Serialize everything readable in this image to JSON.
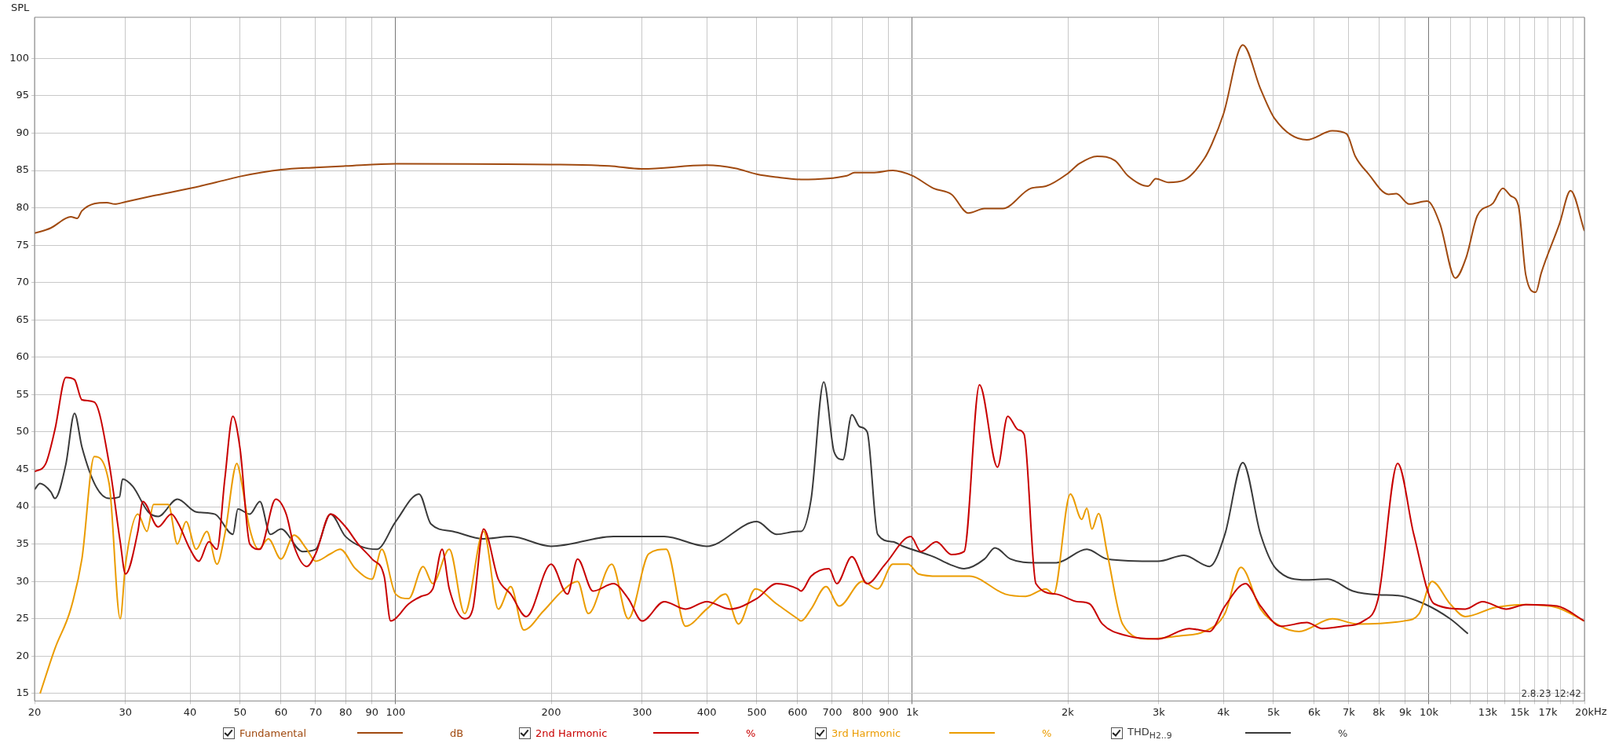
{
  "chart_data": {
    "type": "line",
    "ylabel": "SPL",
    "log": "x",
    "grid": true,
    "legend": "bottom",
    "marker": "none",
    "line_style": "solid",
    "xlim": [
      20,
      20000
    ],
    "ylim": [
      14,
      105.5
    ],
    "xticks": [
      20,
      30,
      40,
      50,
      60,
      70,
      80,
      90,
      100,
      200,
      300,
      400,
      500,
      600,
      700,
      800,
      900,
      {
        "value": 1000,
        "label": "1k"
      },
      {
        "value": 2000,
        "label": "2k"
      },
      {
        "value": 3000,
        "label": "3k"
      },
      {
        "value": 4000,
        "label": "4k"
      },
      {
        "value": 5000,
        "label": "5k"
      },
      {
        "value": 6000,
        "label": "6k"
      },
      {
        "value": 7000,
        "label": "7k"
      },
      {
        "value": 8000,
        "label": "8k"
      },
      {
        "value": 9000,
        "label": "9k"
      },
      {
        "value": 10000,
        "label": "10k"
      },
      {
        "value": 11000,
        "label": null
      },
      {
        "value": 12000,
        "label": null
      },
      {
        "value": 13000,
        "label": "13k"
      },
      {
        "value": 14000,
        "label": null
      },
      {
        "value": 15000,
        "label": "15k"
      },
      {
        "value": 16000,
        "label": null
      },
      {
        "value": 17000,
        "label": "17k"
      },
      {
        "value": 18000,
        "label": null
      },
      {
        "value": 19000,
        "label": null
      },
      {
        "value": 20000,
        "label": "20k"
      }
    ],
    "xlabel": "Hz",
    "yticks": [
      15,
      20,
      25,
      30,
      35,
      40,
      45,
      50,
      55,
      60,
      65,
      70,
      75,
      80,
      85,
      90,
      95,
      100
    ],
    "annotations": [
      "dB",
      "%",
      "%",
      "%",
      "2.8.23 12:42"
    ],
    "series": [
      {
        "name": "Fundamental",
        "color": "#a04a10",
        "x": [
          20,
          21.5,
          23,
          23.5,
          24.2,
          24.7,
          27.6,
          28.6,
          30,
          33.9,
          40,
          46.7,
          50,
          60,
          70,
          80,
          100,
          200,
          259,
          300,
          400,
          454,
          500,
          546,
          609,
          747,
          773,
          837,
          917,
          1000,
          1100,
          1191,
          1284,
          1380,
          1496,
          1695,
          1814,
          2000,
          2104,
          2280,
          2470,
          2614,
          2860,
          2960,
          3134,
          3357,
          3676,
          3804,
          4004,
          4363,
          4722,
          5033,
          5803,
          6503,
          6927,
          7202,
          7626,
          8356,
          8647,
          9156,
          9920,
          10500,
          11250,
          11800,
          12400,
          13300,
          13900,
          14400,
          14900,
          15400,
          16100,
          16500,
          17900,
          18800,
          20000
        ],
        "values": [
          76.6,
          77.3,
          78.6,
          78.8,
          78.6,
          79.6,
          80.7,
          80.5,
          80.8,
          81.6,
          82.6,
          83.7,
          84.2,
          85.1,
          85.4,
          85.6,
          85.9,
          85.8,
          85.6,
          85.2,
          85.7,
          85.3,
          84.5,
          84.1,
          83.8,
          84.3,
          84.7,
          84.7,
          85.0,
          84.3,
          82.6,
          81.8,
          79.3,
          79.9,
          79.9,
          82.6,
          82.9,
          84.6,
          85.9,
          86.9,
          86.3,
          84.3,
          82.9,
          83.9,
          83.4,
          83.7,
          86.6,
          88.6,
          92.6,
          101.8,
          95.9,
          91.9,
          89.1,
          90.3,
          89.9,
          86.9,
          84.6,
          81.8,
          81.9,
          80.5,
          80.9,
          77.9,
          70.6,
          73.3,
          78.9,
          80.6,
          82.6,
          81.6,
          80.3,
          71.0,
          68.7,
          71.3,
          77.9,
          82.3,
          76.9
        ]
      },
      {
        "name": "2nd Harmonic",
        "color": "#c80000",
        "x": [
          20,
          21,
          21.9,
          23,
          23.9,
          24.7,
          26.1,
          27.9,
          29.3,
          30,
          31.7,
          32.4,
          34.7,
          36.8,
          38,
          40,
          41.6,
          43.5,
          45.1,
          46.7,
          48.4,
          50,
          52.2,
          54.6,
          58.6,
          61.4,
          63.6,
          67.3,
          70,
          74.8,
          80,
          84.6,
          90,
          95,
          97.8,
          106,
          112,
          118,
          123,
          127,
          136,
          141,
          148,
          158,
          167,
          179,
          200,
          215,
          225,
          241,
          264,
          282,
          300,
          331,
          364,
          400,
          444,
          500,
          546,
          600,
          609,
          637,
          690,
          714,
          764,
          818,
          886,
          993,
          1039,
          1113,
          1191,
          1260,
          1349,
          1462,
          1530,
          1602,
          1646,
          1735,
          1900,
          2080,
          2204,
          2333,
          2614,
          2990,
          3435,
          3762,
          4028,
          4416,
          4722,
          5170,
          5803,
          6214,
          6810,
          7467,
          7975,
          8700,
          9347,
          10240,
          11760,
          12700,
          14100,
          15400,
          17700,
          20000
        ],
        "values": [
          44.7,
          45.7,
          50.3,
          57.3,
          57,
          54.3,
          54,
          45.7,
          35.3,
          31,
          36.7,
          40.7,
          37.3,
          39,
          37.7,
          34.3,
          32.7,
          35.3,
          34.3,
          43.7,
          52.1,
          47.7,
          35,
          34.3,
          41,
          39,
          34.7,
          32,
          33.7,
          39,
          37.3,
          35,
          33,
          30.7,
          24.7,
          27,
          28,
          29,
          34.3,
          29,
          25,
          26.3,
          37,
          30.3,
          28.3,
          25.3,
          32.3,
          28.3,
          33,
          28.7,
          29.7,
          27.7,
          24.7,
          27.3,
          26.3,
          27.3,
          26.3,
          27.7,
          29.7,
          29,
          28.7,
          30.7,
          31.7,
          29.7,
          33.3,
          29.7,
          32.3,
          36,
          34,
          35.3,
          33.6,
          34,
          56.3,
          45.3,
          52.1,
          50.3,
          49.7,
          29.7,
          28.3,
          27.3,
          27,
          24.3,
          22.7,
          22.3,
          23.7,
          23.3,
          26.7,
          29.7,
          26.7,
          24,
          24.5,
          23.7,
          24,
          24.7,
          27.7,
          45.8,
          36.3,
          27,
          26.3,
          27.3,
          26.3,
          26.9,
          26.7,
          24.7
        ]
      },
      {
        "name": "3rd Harmonic",
        "color": "#eb9c00",
        "x": [
          20.5,
          21.9,
          23.5,
          24.7,
          26.1,
          27.9,
          29.3,
          30,
          31.7,
          33,
          34,
          36.3,
          37.8,
          39.3,
          41.1,
          43.1,
          45.1,
          46.7,
          49.3,
          50,
          52.2,
          54.3,
          56.7,
          60,
          63.6,
          67.3,
          70,
          74.8,
          78.1,
          83.6,
          90,
          94,
          100,
          106,
          113,
          118,
          127,
          136,
          148,
          158,
          167,
          177,
          193,
          210,
          225,
          236,
          262,
          282,
          309,
          334,
          364,
          400,
          435,
          461,
          497,
          546,
          600,
          609,
          637,
          681,
          722,
          800,
          857,
          917,
          982,
          1028,
          1126,
          1290,
          1513,
          1658,
          1814,
          1877,
          2023,
          2128,
          2177,
          2227,
          2294,
          2385,
          2553,
          2860,
          3277,
          3676,
          4028,
          4325,
          4722,
          5170,
          5604,
          6503,
          7287,
          8938,
          9576,
          10140,
          10990,
          11760,
          13400,
          15400,
          17700,
          20000
        ],
        "values": [
          15,
          21,
          26.3,
          33,
          46.7,
          43,
          25,
          32.3,
          39,
          36.7,
          40.3,
          40.3,
          35,
          38,
          34.3,
          36.7,
          32.3,
          36.3,
          45.8,
          44.3,
          37,
          34.3,
          35.7,
          33,
          36.2,
          34.3,
          32.7,
          33.7,
          34.3,
          31.7,
          30.3,
          34.3,
          28.3,
          27.7,
          32,
          29.7,
          34.3,
          25.7,
          36.7,
          26.3,
          29.3,
          23.5,
          26,
          28.7,
          30,
          25.7,
          32.3,
          25,
          33.7,
          34.3,
          24,
          26.3,
          28.3,
          24.3,
          29,
          27,
          25,
          24.7,
          26.3,
          29.3,
          26.7,
          30,
          29,
          32.3,
          32.3,
          31,
          30.7,
          30.7,
          28.3,
          28,
          29,
          28.3,
          41.7,
          38.3,
          39.8,
          37,
          39.1,
          33.7,
          24.3,
          22.3,
          22.7,
          23.3,
          25.7,
          31.9,
          26.3,
          24,
          23.3,
          25,
          24.3,
          24.7,
          25.7,
          30,
          27,
          25.3,
          26.5,
          26.9,
          26.5,
          24.7
        ]
      },
      {
        "name": "THD$_{H2..9}$",
        "color": "#3a3a3a",
        "x": [
          20,
          20.5,
          21.5,
          21.9,
          23,
          23.9,
          24.7,
          26.3,
          27.9,
          29.2,
          29.6,
          31,
          33.2,
          34.7,
          37.8,
          41.1,
          44.7,
          48.4,
          49.5,
          52.2,
          54.6,
          57.2,
          60,
          66,
          70,
          74.8,
          80,
          92,
          100,
          111,
          117,
          129,
          148,
          167,
          200,
          264,
          331,
          400,
          500,
          546,
          600,
          609,
          637,
          674,
          706,
          734,
          764,
          791,
          818,
          857,
          917,
          960,
          1100,
          1180,
          1260,
          1380,
          1445,
          1549,
          1735,
          1900,
          2177,
          2385,
          2990,
          3357,
          3762,
          4028,
          4363,
          4722,
          5058,
          5803,
          6372,
          7128,
          7975,
          8728,
          9796,
          10990,
          11900
        ],
        "values": [
          42.3,
          43.1,
          42,
          41.1,
          45.7,
          52.5,
          48,
          42.7,
          41.1,
          41.3,
          43.7,
          42.7,
          39.3,
          38.7,
          41,
          39.3,
          39,
          36.3,
          39.7,
          39,
          40.7,
          36.3,
          37,
          34,
          34.3,
          39,
          36,
          34.3,
          38,
          41.7,
          37.7,
          36.7,
          35.7,
          36,
          34.7,
          36,
          36,
          34.7,
          38,
          36.3,
          36.7,
          36.7,
          41,
          56.7,
          47.3,
          46.3,
          52.3,
          50.7,
          50,
          36.3,
          35.3,
          34.7,
          33.3,
          32.3,
          31.7,
          33,
          34.5,
          33,
          32.5,
          32.5,
          34.3,
          33,
          32.7,
          33.5,
          32,
          36.3,
          45.9,
          36.3,
          31.7,
          30.2,
          30.3,
          28.7,
          28.2,
          28.1,
          27,
          25,
          23
        ]
      }
    ]
  }
}
